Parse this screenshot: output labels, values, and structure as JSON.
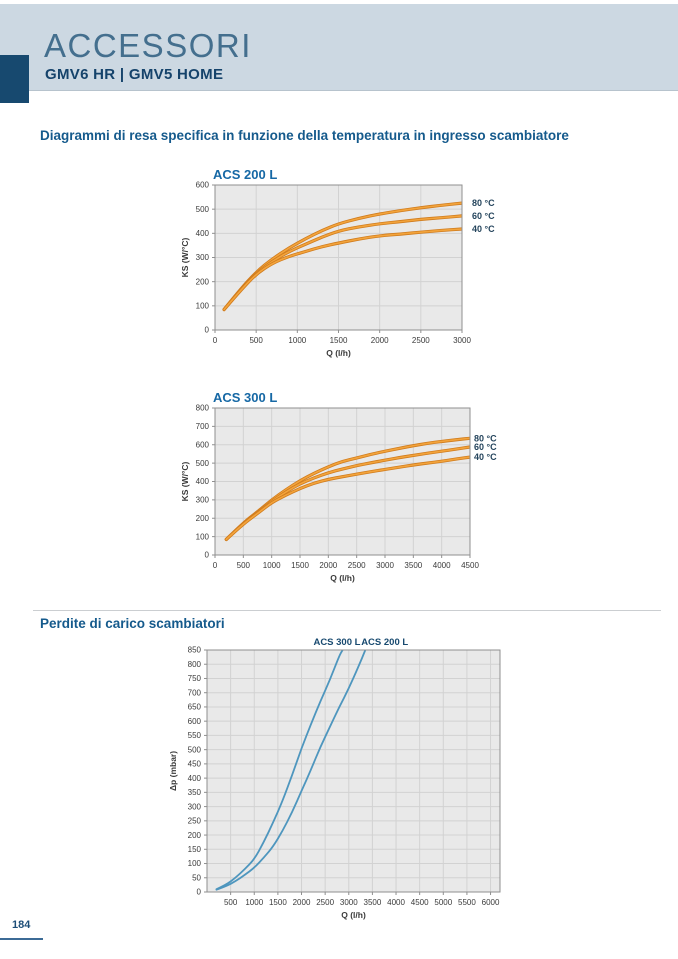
{
  "header": {
    "title": "ACCESSORI",
    "subtitle": "GMV6 HR | GMV5 HOME"
  },
  "sections": [
    {
      "heading": "Diagrammi di resa specifica in funzione della temperatura in ingresso scambiatore"
    },
    {
      "heading": "Perdite di carico scambiatori"
    }
  ],
  "footer": {
    "page_number": "184"
  },
  "colors": {
    "accent_navy": "#17496f",
    "band": "#ccd8e2",
    "header_title_blue": "#446f8e",
    "heading_blue": "#155a8c",
    "chart_title_blue": "#1668a5",
    "orange_outer": "#d07c1e",
    "orange_inner": "#f3a43c",
    "curve_blue": "#4e96be",
    "chart_bg": "#e9e9e9",
    "grid": "#d2d2d2",
    "chart_border": "#8f8f8f",
    "tick_text": "#3a3a3a",
    "label_navy": "#24445c",
    "footer_navy": "#1d4e78"
  },
  "chart_data": [
    {
      "type": "line",
      "title": "ACS 200 L",
      "xlabel": "Q (l/h)",
      "ylabel": "KS (W/°C)",
      "xlim": [
        0,
        3000
      ],
      "ylim": [
        0,
        600
      ],
      "xticks": [
        0,
        500,
        1000,
        1500,
        2000,
        2500,
        3000
      ],
      "yticks": [
        0,
        100,
        200,
        300,
        400,
        500,
        600
      ],
      "grid": true,
      "legend_position": "right-of-plot",
      "palette": "orange",
      "series": [
        {
          "name": "80 °C",
          "x": [
            110,
            300,
            500,
            700,
            900,
            1100,
            1300,
            1500,
            1750,
            2000,
            2250,
            2500,
            2750,
            3000
          ],
          "y": [
            85,
            165,
            240,
            295,
            340,
            378,
            412,
            440,
            462,
            480,
            494,
            506,
            516,
            525
          ]
        },
        {
          "name": "60 °C",
          "x": [
            110,
            300,
            500,
            700,
            900,
            1100,
            1300,
            1500,
            1750,
            2000,
            2250,
            2500,
            2750,
            3000
          ],
          "y": [
            85,
            162,
            236,
            285,
            325,
            355,
            385,
            410,
            427,
            440,
            448,
            458,
            465,
            472
          ]
        },
        {
          "name": "40 °C",
          "x": [
            110,
            300,
            500,
            700,
            900,
            1100,
            1300,
            1500,
            1750,
            2000,
            2250,
            2500,
            2750,
            3000
          ],
          "y": [
            85,
            160,
            232,
            277,
            305,
            325,
            345,
            360,
            377,
            390,
            397,
            405,
            412,
            418
          ]
        }
      ]
    },
    {
      "type": "line",
      "title": "ACS 300 L",
      "xlabel": "Q (l/h)",
      "ylabel": "KS (W/°C)",
      "xlim": [
        0,
        4500
      ],
      "ylim": [
        0,
        800
      ],
      "xticks": [
        0,
        500,
        1000,
        1500,
        2000,
        2500,
        3000,
        3500,
        4000,
        4500
      ],
      "yticks": [
        0,
        100,
        200,
        300,
        400,
        500,
        600,
        700,
        800
      ],
      "grid": true,
      "legend_position": "right-of-plot",
      "palette": "orange",
      "series": [
        {
          "name": "80 °C",
          "x": [
            200,
            500,
            750,
            1000,
            1250,
            1500,
            1750,
            2000,
            2250,
            2500,
            2750,
            3000,
            3250,
            3500,
            3750,
            4000,
            4250,
            4500
          ],
          "y": [
            85,
            175,
            235,
            300,
            355,
            405,
            445,
            480,
            510,
            528,
            548,
            565,
            580,
            595,
            608,
            618,
            627,
            635
          ]
        },
        {
          "name": "60 °C",
          "x": [
            200,
            500,
            750,
            1000,
            1250,
            1500,
            1750,
            2000,
            2250,
            2500,
            2750,
            3000,
            3250,
            3500,
            3750,
            4000,
            4250,
            4500
          ],
          "y": [
            85,
            172,
            230,
            293,
            343,
            388,
            420,
            448,
            468,
            487,
            502,
            516,
            530,
            542,
            554,
            565,
            576,
            588
          ]
        },
        {
          "name": "40 °C",
          "x": [
            200,
            500,
            750,
            1000,
            1250,
            1500,
            1750,
            2000,
            2250,
            2500,
            2750,
            3000,
            3250,
            3500,
            3750,
            4000,
            4250,
            4500
          ],
          "y": [
            85,
            170,
            226,
            286,
            326,
            362,
            392,
            412,
            426,
            440,
            453,
            466,
            478,
            490,
            500,
            510,
            522,
            533
          ]
        }
      ]
    },
    {
      "type": "line",
      "title": "",
      "xlabel": "Q (l/h)",
      "ylabel": "Δp (mbar)",
      "xlim": [
        0,
        6200
      ],
      "ylim": [
        0,
        850
      ],
      "xticks": [
        500,
        1000,
        1500,
        2000,
        2500,
        3000,
        3500,
        4000,
        4500,
        5000,
        5500,
        6000
      ],
      "yticks": [
        0,
        50,
        100,
        150,
        200,
        250,
        300,
        350,
        400,
        450,
        500,
        550,
        600,
        650,
        700,
        750,
        800,
        850
      ],
      "grid": true,
      "legend_position": "top-labels",
      "palette": "blue",
      "top_labels": [
        {
          "text": "ACS 300 L",
          "q": 2750
        },
        {
          "text": "ACS 200 L",
          "q": 3760
        }
      ],
      "series": [
        {
          "name": "ACS 300 L",
          "x": [
            200,
            400,
            600,
            800,
            1000,
            1200,
            1400,
            1600,
            1800,
            2000,
            2200,
            2400,
            2600,
            2800,
            2870
          ],
          "y": [
            10,
            25,
            50,
            80,
            115,
            175,
            245,
            320,
            410,
            505,
            590,
            670,
            745,
            830,
            850
          ]
        },
        {
          "name": "ACS 200 L",
          "x": [
            200,
            400,
            600,
            800,
            1000,
            1200,
            1400,
            1600,
            1800,
            2000,
            2200,
            2400,
            2600,
            2800,
            3000,
            3200,
            3350
          ],
          "y": [
            8,
            20,
            38,
            60,
            85,
            120,
            160,
            215,
            280,
            355,
            430,
            510,
            580,
            650,
            715,
            790,
            850
          ]
        }
      ]
    }
  ]
}
